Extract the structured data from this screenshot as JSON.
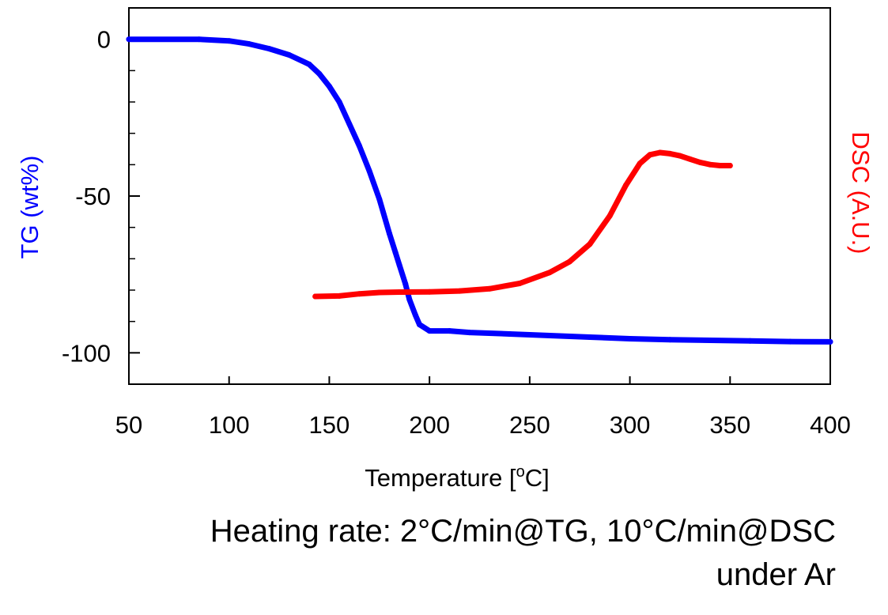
{
  "chart_data": {
    "type": "line",
    "xlabel": "Temperature [",
    "xlabel_sup": "o",
    "xlabel_end": "C]",
    "y_left_label": "TG (wt%)",
    "y_right_label": "DSC (A.U.)",
    "xlim": [
      50,
      400
    ],
    "ylim_left": [
      -110,
      10
    ],
    "x_ticks": [
      50,
      100,
      150,
      200,
      250,
      300,
      350,
      400
    ],
    "y_ticks_left": [
      0,
      -50,
      -100
    ],
    "grid": false,
    "colors": {
      "tg": "#0000ff",
      "dsc": "#ff0000",
      "axis": "#000000"
    },
    "series": [
      {
        "name": "TG (wt%)",
        "axis": "left",
        "x": [
          50,
          85,
          100,
          110,
          120,
          130,
          140,
          145,
          150,
          155,
          160,
          165,
          170,
          175,
          180,
          183,
          185,
          188,
          190,
          193,
          195,
          200,
          210,
          220,
          240,
          260,
          280,
          300,
          320,
          340,
          360,
          380,
          400
        ],
        "y": [
          0,
          0,
          -0.5,
          -1.5,
          -3,
          -5,
          -8,
          -11,
          -15,
          -20,
          -27,
          -34,
          -42,
          -51,
          -62,
          -68,
          -72,
          -78,
          -83,
          -88,
          -91,
          -93,
          -93,
          -93.5,
          -94,
          -94.5,
          -95,
          -95.5,
          -95.8,
          -96,
          -96.2,
          -96.4,
          -96.5
        ]
      },
      {
        "name": "DSC (A.U.)",
        "axis": "right",
        "x": [
          143,
          155,
          165,
          175,
          185,
          200,
          215,
          230,
          245,
          260,
          270,
          280,
          290,
          298,
          305,
          310,
          315,
          320,
          325,
          330,
          335,
          340,
          345,
          350
        ],
        "y": [
          0,
          0.2,
          1.2,
          1.8,
          2.0,
          2.1,
          2.5,
          3.5,
          6,
          11,
          16,
          24,
          37,
          51,
          61,
          65,
          66,
          65.5,
          64.5,
          63,
          61.5,
          60.5,
          60,
          60
        ]
      }
    ]
  },
  "caption": {
    "line1": "Heating rate: 2°C/min@TG, 10°C/min@DSC",
    "line2": "under Ar"
  }
}
